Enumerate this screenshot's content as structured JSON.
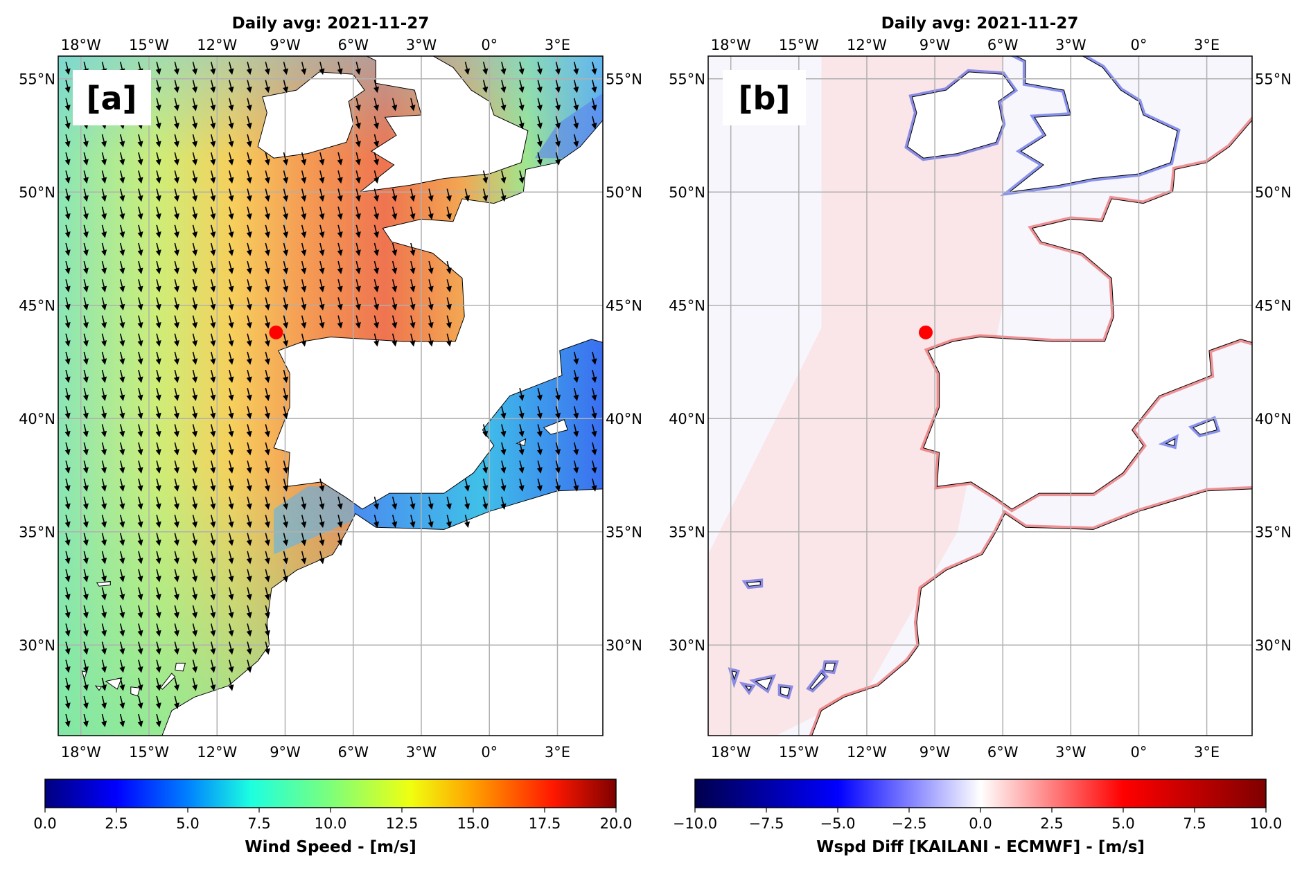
{
  "figure": {
    "panels": [
      {
        "id": "a",
        "label": "[a]",
        "title": "Daily avg: 2021-11-27",
        "colorbar": {
          "label": "Wind Speed - [m/s]",
          "ticks": [
            "0.0",
            "2.5",
            "5.0",
            "7.5",
            "10.0",
            "12.5",
            "15.0",
            "17.5",
            "20.0"
          ],
          "range": [
            0,
            20
          ],
          "colormap": "jet",
          "colors": [
            "#00007f",
            "#0000ff",
            "#0080ff",
            "#1cffe0",
            "#7dff7a",
            "#f0ff10",
            "#ffa000",
            "#ff1800",
            "#7f0000"
          ]
        }
      },
      {
        "id": "b",
        "label": "[b]",
        "title": "Daily avg: 2021-11-27",
        "colorbar": {
          "label": "Wspd Diff [KAILANI - ECMWF] - [m/s]",
          "ticks": [
            "−10.0",
            "−7.5",
            "−5.0",
            "−2.5",
            "0.0",
            "2.5",
            "5.0",
            "7.5",
            "10.0"
          ],
          "range": [
            -10,
            10
          ],
          "colormap": "seismic",
          "colors": [
            "#00004c",
            "#0000ff",
            "#ffffff",
            "#ff0000",
            "#7f0000"
          ]
        }
      }
    ],
    "map_extent": {
      "lon": [
        -19,
        5
      ],
      "lat": [
        26,
        56
      ]
    },
    "lon_ticks": [
      {
        "value": -18,
        "label": "18°W"
      },
      {
        "value": -15,
        "label": "15°W"
      },
      {
        "value": -12,
        "label": "12°W"
      },
      {
        "value": -9,
        "label": "9°W"
      },
      {
        "value": -6,
        "label": "6°W"
      },
      {
        "value": -3,
        "label": "3°W"
      },
      {
        "value": 0,
        "label": "0°"
      },
      {
        "value": 3,
        "label": "3°E"
      }
    ],
    "lat_ticks": [
      {
        "value": 55,
        "label": "55°N"
      },
      {
        "value": 50,
        "label": "50°N"
      },
      {
        "value": 45,
        "label": "45°N"
      },
      {
        "value": 40,
        "label": "40°N"
      },
      {
        "value": 35,
        "label": "35°N"
      },
      {
        "value": 30,
        "label": "30°N"
      }
    ],
    "marker": {
      "lon": -9.4,
      "lat": 43.8,
      "color": "#ff0000"
    },
    "contour_colors": {
      "inner": "#2e8b2e",
      "outer": "#9b30b0"
    },
    "vectors": "wind direction arrows"
  }
}
